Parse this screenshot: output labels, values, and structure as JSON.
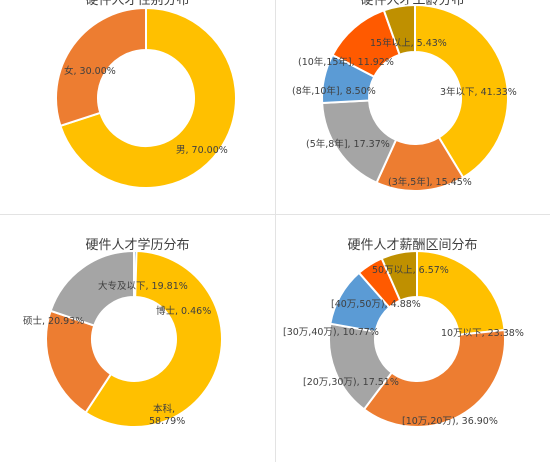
{
  "chart_data": [
    {
      "type": "pie",
      "title": "硬件人才性别分布",
      "categories": [
        "男",
        "女"
      ],
      "values": [
        70.0,
        30.0
      ],
      "value_labels": [
        "70.00%",
        "30.00%"
      ],
      "colors": [
        "#FFC000",
        "#ED7D31"
      ]
    },
    {
      "type": "pie",
      "title": "硬件人才工龄分布",
      "categories": [
        "3年以下",
        "(3年,5年]",
        "(5年,8年]",
        "(8年,10年]",
        "(10年,15年]",
        "15年以上"
      ],
      "values": [
        41.33,
        15.45,
        17.37,
        8.5,
        11.92,
        5.43
      ],
      "value_labels": [
        "41.33%",
        "15.45%",
        "17.37%",
        "8.50%",
        "11.92%",
        "5.43%"
      ],
      "colors": [
        "#FFC000",
        "#ED7D31",
        "#A5A5A5",
        "#5B9BD5",
        "#FF5A00",
        "#BF9000"
      ]
    },
    {
      "type": "pie",
      "title": "硬件人才学历分布",
      "categories": [
        "博士",
        "本科",
        "硕士",
        "大专及以下"
      ],
      "values": [
        0.46,
        58.79,
        20.93,
        19.81
      ],
      "value_labels": [
        "0.46%",
        "58.79%",
        "20.93%",
        "19.81%"
      ],
      "colors": [
        "#5B9BD5",
        "#FFC000",
        "#ED7D31",
        "#A5A5A5"
      ]
    },
    {
      "type": "pie",
      "title": "硬件人才薪酬区间分布",
      "categories": [
        "10万以下",
        "[10万,20万)",
        "[20万,30万)",
        "[30万,40万)",
        "[40万,50万)",
        "50万以上"
      ],
      "values": [
        23.38,
        36.9,
        17.51,
        10.77,
        4.88,
        6.57
      ],
      "value_labels": [
        "23.38%",
        "36.90%",
        "17.51%",
        "10.77%",
        "4.88%",
        "6.57%"
      ],
      "colors": [
        "#FFC000",
        "#ED7D31",
        "#A5A5A5",
        "#5B9BD5",
        "#FF5A00",
        "#BF9000"
      ]
    }
  ]
}
